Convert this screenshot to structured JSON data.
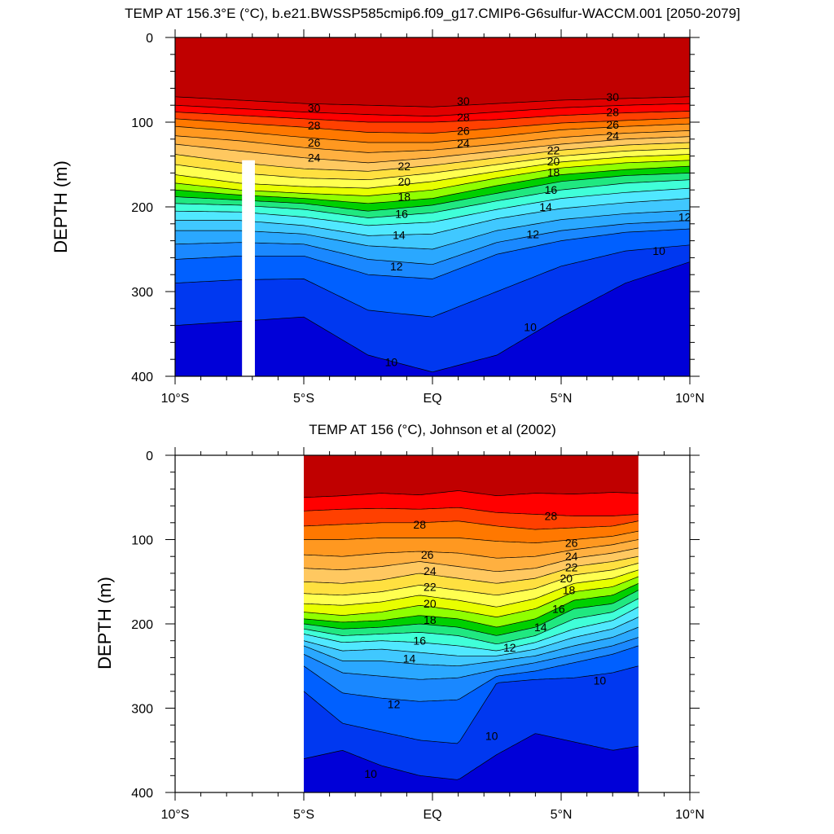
{
  "colors": {
    "palette": [
      "#0000d8",
      "#0038f0",
      "#0060ff",
      "#1a88ff",
      "#2aa8ff",
      "#40c8ff",
      "#50e8ff",
      "#40ffd8",
      "#20e880",
      "#00d000",
      "#90ff00",
      "#e8ff00",
      "#ffff50",
      "#ffe040",
      "#ffc860",
      "#ffb040",
      "#ff9820",
      "#ff7800",
      "#ff4000",
      "#ff0000",
      "#e00000",
      "#c00000"
    ],
    "levels": [
      9.5,
      10,
      11,
      12,
      13,
      14,
      15,
      16,
      17,
      18,
      19,
      20,
      21,
      22,
      23,
      24,
      25,
      26,
      27,
      28,
      29,
      30
    ]
  },
  "chart_data": [
    {
      "type": "contour",
      "title": "TEMP AT 156.3°E (°C), b.e21.BWSSP585cmip6.f09_g17.CMIP6-G6sulfur-WACCM.001 [2050-2079]",
      "ylabel": "DEPTH (m)",
      "xlabel": "",
      "xlim": [
        -10,
        10
      ],
      "ylim": [
        0,
        400
      ],
      "data_xlim": [
        -10,
        10
      ],
      "x_ticks": [
        {
          "value": -10,
          "label": "10°S"
        },
        {
          "value": -5,
          "label": "5°S"
        },
        {
          "value": 0,
          "label": "EQ"
        },
        {
          "value": 5,
          "label": "5°N"
        },
        {
          "value": 10,
          "label": "10°N"
        }
      ],
      "y_ticks": [
        0,
        100,
        200,
        300,
        400
      ],
      "gap": {
        "x0": -7.4,
        "x1": -6.9,
        "y0": 145,
        "y1": 400
      },
      "x_nodes": [
        -10,
        -7.5,
        -5,
        -2.5,
        0,
        2.5,
        5,
        7.5,
        10
      ],
      "isotherm_depths": [
        {
          "t": 30,
          "d": [
            70,
            74,
            78,
            80,
            82,
            78,
            74,
            72,
            70
          ]
        },
        {
          "t": 29,
          "d": [
            80,
            84,
            88,
            91,
            93,
            88,
            83,
            80,
            78
          ]
        },
        {
          "t": 28,
          "d": [
            88,
            92,
            96,
            100,
            100,
            97,
            92,
            89,
            87
          ]
        },
        {
          "t": 27,
          "d": [
            96,
            101,
            106,
            112,
            113,
            107,
            101,
            98,
            95
          ]
        },
        {
          "t": 26,
          "d": [
            105,
            111,
            118,
            124,
            124,
            117,
            109,
            105,
            102
          ]
        },
        {
          "t": 25,
          "d": [
            116,
            122,
            130,
            136,
            133,
            126,
            118,
            113,
            110
          ]
        },
        {
          "t": 24,
          "d": [
            126,
            134,
            142,
            148,
            142,
            134,
            126,
            120,
            117
          ]
        },
        {
          "t": 23,
          "d": [
            138,
            148,
            155,
            158,
            151,
            142,
            133,
            127,
            124
          ]
        },
        {
          "t": 22,
          "d": [
            150,
            160,
            166,
            168,
            160,
            150,
            140,
            134,
            131
          ]
        },
        {
          "t": 21,
          "d": [
            162,
            172,
            176,
            178,
            170,
            158,
            147,
            141,
            138
          ]
        },
        {
          "t": 20,
          "d": [
            172,
            180,
            184,
            187,
            180,
            166,
            154,
            148,
            145
          ]
        },
        {
          "t": 19,
          "d": [
            180,
            186,
            190,
            196,
            190,
            175,
            162,
            156,
            152
          ]
        },
        {
          "t": 18,
          "d": [
            188,
            192,
            196,
            205,
            198,
            184,
            170,
            163,
            160
          ]
        },
        {
          "t": 17,
          "d": [
            196,
            198,
            203,
            213,
            207,
            193,
            180,
            172,
            168
          ]
        },
        {
          "t": 16,
          "d": [
            205,
            206,
            212,
            222,
            218,
            203,
            190,
            183,
            178
          ]
        },
        {
          "t": 15,
          "d": [
            216,
            216,
            222,
            234,
            232,
            214,
            202,
            195,
            190
          ]
        },
        {
          "t": 14,
          "d": [
            228,
            228,
            232,
            246,
            250,
            228,
            215,
            208,
            204
          ]
        },
        {
          "t": 13,
          "d": [
            244,
            242,
            244,
            262,
            268,
            242,
            228,
            220,
            216
          ]
        },
        {
          "t": 12,
          "d": [
            262,
            258,
            258,
            280,
            285,
            256,
            240,
            230,
            226
          ]
        },
        {
          "t": 11,
          "d": [
            290,
            286,
            285,
            322,
            330,
            300,
            270,
            252,
            245
          ]
        },
        {
          "t": 10,
          "d": [
            340,
            335,
            330,
            375,
            395,
            375,
            330,
            290,
            265
          ]
        },
        {
          "t": 9.5,
          "d": [
            400,
            400,
            400,
            400,
            400,
            400,
            400,
            315,
            308
          ]
        }
      ],
      "contour_labels": [
        {
          "text": "30",
          "x": -4.6,
          "y": 83
        },
        {
          "text": "28",
          "x": -4.6,
          "y": 104
        },
        {
          "text": "26",
          "x": -4.6,
          "y": 124
        },
        {
          "text": "24",
          "x": -4.6,
          "y": 142
        },
        {
          "text": "22",
          "x": -1.1,
          "y": 152
        },
        {
          "text": "20",
          "x": -1.1,
          "y": 170
        },
        {
          "text": "18",
          "x": -1.1,
          "y": 188
        },
        {
          "text": "16",
          "x": -1.2,
          "y": 208
        },
        {
          "text": "14",
          "x": -1.3,
          "y": 233
        },
        {
          "text": "12",
          "x": -1.4,
          "y": 270
        },
        {
          "text": "10",
          "x": -1.6,
          "y": 383
        },
        {
          "text": "30",
          "x": 1.2,
          "y": 75
        },
        {
          "text": "28",
          "x": 1.2,
          "y": 94
        },
        {
          "text": "26",
          "x": 1.2,
          "y": 110
        },
        {
          "text": "24",
          "x": 1.2,
          "y": 125
        },
        {
          "text": "22",
          "x": 4.7,
          "y": 133
        },
        {
          "text": "20",
          "x": 4.7,
          "y": 146
        },
        {
          "text": "18",
          "x": 4.7,
          "y": 159
        },
        {
          "text": "16",
          "x": 4.6,
          "y": 180
        },
        {
          "text": "14",
          "x": 4.4,
          "y": 200
        },
        {
          "text": "12",
          "x": 3.9,
          "y": 232
        },
        {
          "text": "10",
          "x": 3.8,
          "y": 342
        },
        {
          "text": "30",
          "x": 7.0,
          "y": 70
        },
        {
          "text": "28",
          "x": 7.0,
          "y": 88
        },
        {
          "text": "26",
          "x": 7.0,
          "y": 103
        },
        {
          "text": "24",
          "x": 7.0,
          "y": 116
        },
        {
          "text": "12",
          "x": 9.8,
          "y": 212
        },
        {
          "text": "10",
          "x": 8.8,
          "y": 252
        }
      ]
    },
    {
      "type": "contour",
      "title": "TEMP AT 156 (°C), Johnson et al (2002)",
      "ylabel": "DEPTH (m)",
      "xlabel": "",
      "xlim": [
        -10,
        10
      ],
      "ylim": [
        0,
        400
      ],
      "data_xlim": [
        -5,
        8
      ],
      "x_ticks": [
        {
          "value": -10,
          "label": "10°S"
        },
        {
          "value": -5,
          "label": "5°S"
        },
        {
          "value": 0,
          "label": "EQ"
        },
        {
          "value": 5,
          "label": "5°N"
        },
        {
          "value": 10,
          "label": "10°N"
        }
      ],
      "y_ticks": [
        0,
        100,
        200,
        300,
        400
      ],
      "x_nodes": [
        -5,
        -3.5,
        -2,
        -0.5,
        1,
        2.5,
        4,
        5.5,
        7,
        8
      ],
      "isotherm_depths": [
        {
          "t": 29,
          "d": [
            50,
            48,
            45,
            47,
            42,
            48,
            45,
            46,
            44,
            45
          ]
        },
        {
          "t": 28,
          "d": [
            66,
            64,
            63,
            64,
            62,
            68,
            70,
            72,
            72,
            70
          ]
        },
        {
          "t": 27,
          "d": [
            84,
            82,
            80,
            80,
            78,
            84,
            88,
            86,
            84,
            78
          ]
        },
        {
          "t": 26,
          "d": [
            100,
            100,
            98,
            98,
            98,
            102,
            104,
            100,
            96,
            90
          ]
        },
        {
          "t": 25,
          "d": [
            118,
            120,
            116,
            114,
            116,
            122,
            120,
            112,
            106,
            100
          ]
        },
        {
          "t": 24,
          "d": [
            134,
            136,
            132,
            126,
            132,
            138,
            134,
            122,
            116,
            110
          ]
        },
        {
          "t": 23,
          "d": [
            150,
            152,
            148,
            140,
            146,
            152,
            146,
            132,
            126,
            120
          ]
        },
        {
          "t": 22,
          "d": [
            164,
            166,
            162,
            154,
            160,
            166,
            158,
            142,
            136,
            128
          ]
        },
        {
          "t": 21,
          "d": [
            176,
            178,
            174,
            166,
            172,
            180,
            170,
            152,
            146,
            136
          ]
        },
        {
          "t": 20,
          "d": [
            186,
            190,
            186,
            178,
            184,
            192,
            182,
            162,
            156,
            144
          ]
        },
        {
          "t": 19,
          "d": [
            194,
            198,
            196,
            190,
            194,
            204,
            194,
            172,
            166,
            152
          ]
        },
        {
          "t": 18,
          "d": [
            200,
            206,
            204,
            200,
            204,
            214,
            204,
            182,
            176,
            160
          ]
        },
        {
          "t": 17,
          "d": [
            206,
            214,
            212,
            210,
            214,
            224,
            214,
            194,
            186,
            170
          ]
        },
        {
          "t": 16,
          "d": [
            212,
            222,
            220,
            222,
            226,
            232,
            222,
            206,
            196,
            180
          ]
        },
        {
          "t": 15,
          "d": [
            220,
            232,
            230,
            234,
            238,
            238,
            230,
            216,
            206,
            192
          ]
        },
        {
          "t": 14,
          "d": [
            226,
            244,
            244,
            248,
            250,
            244,
            238,
            226,
            216,
            204
          ]
        },
        {
          "t": 13,
          "d": [
            236,
            258,
            262,
            266,
            264,
            254,
            246,
            236,
            226,
            216
          ]
        },
        {
          "t": 12,
          "d": [
            250,
            282,
            288,
            292,
            290,
            262,
            256,
            246,
            236,
            226
          ]
        },
        {
          "t": 11,
          "d": [
            280,
            318,
            328,
            338,
            342,
            270,
            266,
            264,
            258,
            250
          ]
        },
        {
          "t": 10,
          "d": [
            360,
            350,
            368,
            380,
            385,
            355,
            330,
            340,
            350,
            345
          ]
        },
        {
          "t": 9.5,
          "d": [
            400,
            385,
            400,
            400,
            400,
            400,
            340,
            345,
            360,
            355
          ]
        }
      ],
      "contour_labels": [
        {
          "text": "28",
          "x": -0.5,
          "y": 82
        },
        {
          "text": "26",
          "x": -0.2,
          "y": 118
        },
        {
          "text": "24",
          "x": -0.1,
          "y": 137
        },
        {
          "text": "22",
          "x": -0.1,
          "y": 156
        },
        {
          "text": "20",
          "x": -0.1,
          "y": 176
        },
        {
          "text": "18",
          "x": -0.1,
          "y": 195
        },
        {
          "text": "16",
          "x": -0.5,
          "y": 220
        },
        {
          "text": "14",
          "x": -0.9,
          "y": 241
        },
        {
          "text": "12",
          "x": -1.5,
          "y": 295
        },
        {
          "text": "10",
          "x": -2.4,
          "y": 378
        },
        {
          "text": "28",
          "x": 4.6,
          "y": 72
        },
        {
          "text": "26",
          "x": 5.4,
          "y": 104
        },
        {
          "text": "24",
          "x": 5.4,
          "y": 120
        },
        {
          "text": "22",
          "x": 5.4,
          "y": 133
        },
        {
          "text": "20",
          "x": 5.2,
          "y": 146
        },
        {
          "text": "18",
          "x": 5.3,
          "y": 160
        },
        {
          "text": "16",
          "x": 4.9,
          "y": 182
        },
        {
          "text": "14",
          "x": 4.2,
          "y": 204
        },
        {
          "text": "12",
          "x": 3.0,
          "y": 228
        },
        {
          "text": "10",
          "x": 6.5,
          "y": 267
        },
        {
          "text": "10",
          "x": 2.3,
          "y": 333
        }
      ]
    }
  ]
}
